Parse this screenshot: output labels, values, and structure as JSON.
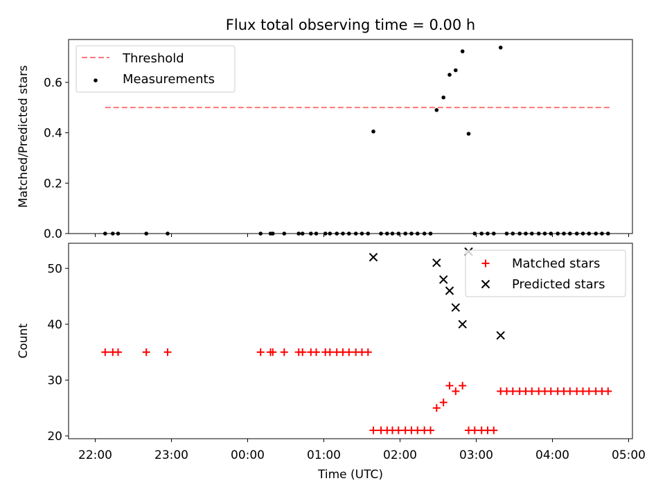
{
  "chart_data": {
    "title": "Flux total observing time = 0.00 h",
    "x_axis": {
      "label": "Time (UTC)",
      "unit": "hours since 22:00",
      "range": [
        -0.35,
        7.05
      ],
      "ticks": [
        0,
        1,
        2,
        3,
        4,
        5,
        6,
        7
      ],
      "tick_labels": [
        "22:00",
        "23:00",
        "00:00",
        "01:00",
        "02:00",
        "03:00",
        "04:00",
        "05:00"
      ]
    },
    "panels": [
      {
        "name": "ratio-panel",
        "type": "scatter",
        "ylabel": "Matched/Predicted stars",
        "ylim": [
          0,
          0.77
        ],
        "yticks": [
          0.0,
          0.2,
          0.4,
          0.6
        ],
        "ytick_labels": [
          "0.0",
          "0.2",
          "0.4",
          "0.6"
        ],
        "show_x_tick_labels": false,
        "legend": {
          "position": "top-left",
          "entries": [
            "Threshold",
            "Measurements"
          ]
        },
        "threshold": {
          "name": "Threshold",
          "value": 0.5,
          "x_range": [
            0.13,
            6.75
          ],
          "color": "#ff7777",
          "style": "dashed"
        },
        "series": [
          {
            "name": "Measurements",
            "marker": "dot",
            "color": "#000000",
            "points": [
              [
                0.13,
                0
              ],
              [
                0.23,
                0
              ],
              [
                0.3,
                0
              ],
              [
                0.67,
                0
              ],
              [
                0.95,
                0
              ],
              [
                2.17,
                0
              ],
              [
                2.3,
                0
              ],
              [
                2.33,
                0
              ],
              [
                2.48,
                0
              ],
              [
                2.67,
                0
              ],
              [
                2.72,
                0
              ],
              [
                2.83,
                0
              ],
              [
                2.9,
                0
              ],
              [
                3.02,
                0
              ],
              [
                3.08,
                0
              ],
              [
                3.17,
                0
              ],
              [
                3.25,
                0
              ],
              [
                3.33,
                0
              ],
              [
                3.42,
                0
              ],
              [
                3.5,
                0
              ],
              [
                3.58,
                0
              ],
              [
                3.65,
                0.405
              ],
              [
                3.75,
                0
              ],
              [
                3.83,
                0
              ],
              [
                3.9,
                0
              ],
              [
                3.98,
                0
              ],
              [
                4.07,
                0
              ],
              [
                4.15,
                0
              ],
              [
                4.23,
                0
              ],
              [
                4.32,
                0
              ],
              [
                4.4,
                0
              ],
              [
                4.48,
                0.49
              ],
              [
                4.57,
                0.54
              ],
              [
                4.65,
                0.63
              ],
              [
                4.73,
                0.648
              ],
              [
                4.82,
                0.723
              ],
              [
                4.9,
                0.396
              ],
              [
                4.98,
                0
              ],
              [
                5.07,
                0
              ],
              [
                5.15,
                0
              ],
              [
                5.23,
                0
              ],
              [
                5.32,
                0.738
              ],
              [
                5.4,
                0
              ],
              [
                5.48,
                0
              ],
              [
                5.57,
                0
              ],
              [
                5.65,
                0
              ],
              [
                5.73,
                0
              ],
              [
                5.82,
                0
              ],
              [
                5.9,
                0
              ],
              [
                5.98,
                0
              ],
              [
                6.07,
                0
              ],
              [
                6.15,
                0
              ],
              [
                6.23,
                0
              ],
              [
                6.32,
                0
              ],
              [
                6.4,
                0
              ],
              [
                6.48,
                0
              ],
              [
                6.57,
                0
              ],
              [
                6.65,
                0
              ],
              [
                6.73,
                0
              ]
            ]
          }
        ]
      },
      {
        "name": "count-panel",
        "type": "scatter",
        "ylabel": "Count",
        "ylim": [
          19.5,
          54.5
        ],
        "yticks": [
          20,
          30,
          40,
          50
        ],
        "ytick_labels": [
          "20",
          "30",
          "40",
          "50"
        ],
        "show_x_tick_labels": true,
        "legend": {
          "position": "top-right",
          "entries": [
            "Matched stars",
            "Predicted stars"
          ]
        },
        "series": [
          {
            "name": "Matched stars",
            "marker": "plus",
            "color": "#ff0000",
            "points": [
              [
                0.13,
                35
              ],
              [
                0.23,
                35
              ],
              [
                0.3,
                35
              ],
              [
                0.67,
                35
              ],
              [
                0.95,
                35
              ],
              [
                2.17,
                35
              ],
              [
                2.3,
                35
              ],
              [
                2.33,
                35
              ],
              [
                2.48,
                35
              ],
              [
                2.67,
                35
              ],
              [
                2.72,
                35
              ],
              [
                2.83,
                35
              ],
              [
                2.9,
                35
              ],
              [
                3.02,
                35
              ],
              [
                3.08,
                35
              ],
              [
                3.17,
                35
              ],
              [
                3.25,
                35
              ],
              [
                3.33,
                35
              ],
              [
                3.42,
                35
              ],
              [
                3.5,
                35
              ],
              [
                3.58,
                35
              ],
              [
                3.65,
                21
              ],
              [
                3.75,
                21
              ],
              [
                3.83,
                21
              ],
              [
                3.9,
                21
              ],
              [
                3.98,
                21
              ],
              [
                4.07,
                21
              ],
              [
                4.15,
                21
              ],
              [
                4.23,
                21
              ],
              [
                4.32,
                21
              ],
              [
                4.4,
                21
              ],
              [
                4.48,
                25
              ],
              [
                4.57,
                26
              ],
              [
                4.65,
                29
              ],
              [
                4.73,
                28
              ],
              [
                4.82,
                29
              ],
              [
                4.9,
                21
              ],
              [
                4.98,
                21
              ],
              [
                5.07,
                21
              ],
              [
                5.15,
                21
              ],
              [
                5.23,
                21
              ],
              [
                5.32,
                28
              ],
              [
                5.4,
                28
              ],
              [
                5.48,
                28
              ],
              [
                5.57,
                28
              ],
              [
                5.65,
                28
              ],
              [
                5.73,
                28
              ],
              [
                5.82,
                28
              ],
              [
                5.9,
                28
              ],
              [
                5.98,
                28
              ],
              [
                6.07,
                28
              ],
              [
                6.15,
                28
              ],
              [
                6.23,
                28
              ],
              [
                6.32,
                28
              ],
              [
                6.4,
                28
              ],
              [
                6.48,
                28
              ],
              [
                6.57,
                28
              ],
              [
                6.65,
                28
              ],
              [
                6.73,
                28
              ]
            ]
          },
          {
            "name": "Predicted stars",
            "marker": "x",
            "color": "#000000",
            "points": [
              [
                3.65,
                52
              ],
              [
                4.48,
                51
              ],
              [
                4.57,
                48
              ],
              [
                4.65,
                46
              ],
              [
                4.73,
                43
              ],
              [
                4.82,
                40
              ],
              [
                4.9,
                53
              ],
              [
                5.32,
                38
              ]
            ]
          }
        ]
      }
    ]
  }
}
